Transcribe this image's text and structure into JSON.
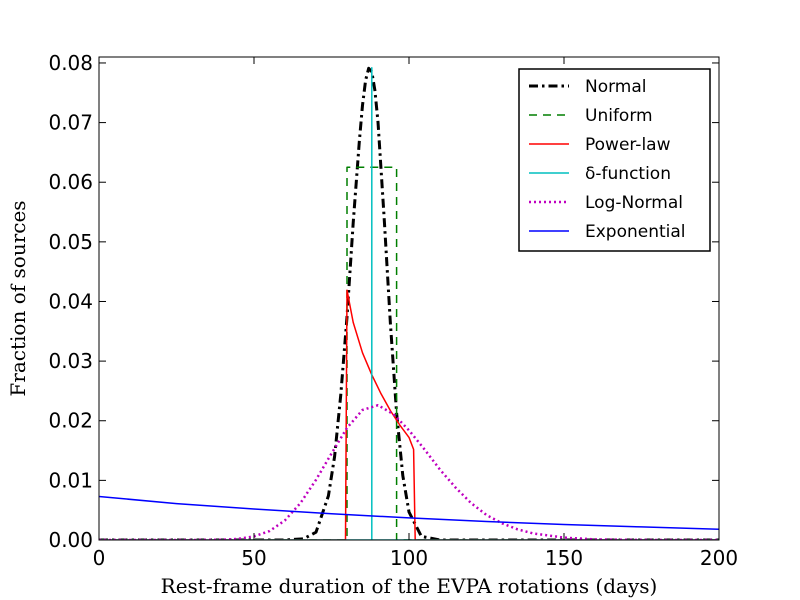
{
  "chart_data": {
    "type": "line",
    "title": "",
    "xlabel": "Rest-frame duration of the EVPA rotations (days)",
    "ylabel": "Fraction of sources",
    "xlim": [
      0,
      200
    ],
    "ylim": [
      0,
      0.081
    ],
    "xticks": [
      0,
      50,
      100,
      150,
      200
    ],
    "xtick_labels": [
      "0",
      "50",
      "100",
      "150",
      "200"
    ],
    "yticks": [
      0,
      0.01,
      0.02,
      0.03,
      0.04,
      0.05,
      0.06,
      0.07,
      0.08
    ],
    "ytick_labels": [
      "0.00",
      "0.01",
      "0.02",
      "0.03",
      "0.04",
      "0.05",
      "0.06",
      "0.07",
      "0.08"
    ],
    "legend_position": "top-right",
    "series": [
      {
        "name": "Normal",
        "color": "#000000",
        "style": "dashdot",
        "x": [
          0,
          60,
          66,
          70,
          74,
          76,
          78,
          80,
          82,
          84,
          85,
          86,
          87,
          88,
          89,
          90,
          92,
          94,
          96,
          98,
          100,
          104,
          110,
          200
        ],
        "y": [
          0,
          0,
          0.0002,
          0.0013,
          0.0074,
          0.014,
          0.0244,
          0.0374,
          0.0532,
          0.067,
          0.0729,
          0.0771,
          0.0791,
          0.0785,
          0.0754,
          0.0701,
          0.0539,
          0.0363,
          0.0213,
          0.0108,
          0.0047,
          0.0006,
          0,
          0
        ]
      },
      {
        "name": "Uniform",
        "color": "#007f00",
        "style": "dashed",
        "x": [
          0,
          80,
          80,
          96,
          96,
          200
        ],
        "y": [
          0,
          0,
          0.0625,
          0.0625,
          0,
          0
        ]
      },
      {
        "name": "Power-law",
        "color": "#ff0000",
        "style": "solid",
        "x": [
          0,
          79.5,
          80,
          82,
          85,
          88,
          91,
          94,
          97,
          100,
          101.5,
          102,
          200
        ],
        "y": [
          0,
          0,
          0.0419,
          0.0365,
          0.0314,
          0.0277,
          0.0245,
          0.0217,
          0.0193,
          0.0172,
          0.0152,
          0,
          0
        ]
      },
      {
        "name": "δ-function",
        "color": "#00bfbf",
        "style": "solid",
        "x": [
          0,
          88,
          88,
          88,
          200
        ],
        "y": [
          0,
          0,
          0.0792,
          0,
          0
        ]
      },
      {
        "name": "Log-Normal",
        "color": "#bf00bf",
        "style": "dotted",
        "x": [
          0,
          30,
          40,
          45,
          50,
          55,
          60,
          65,
          70,
          75,
          80,
          85,
          90,
          95,
          100,
          105,
          110,
          115,
          120,
          125,
          130,
          135,
          140,
          150,
          160,
          170,
          180,
          200
        ],
        "y": [
          0,
          0,
          5e-05,
          0.0002,
          0.0006,
          0.0015,
          0.0033,
          0.0062,
          0.0101,
          0.0145,
          0.0188,
          0.0218,
          0.0226,
          0.0211,
          0.0184,
          0.0152,
          0.0118,
          0.0088,
          0.0062,
          0.0042,
          0.0028,
          0.0018,
          0.0011,
          0.0004,
          0.0001,
          3e-05,
          0,
          0
        ]
      },
      {
        "name": "Exponential",
        "color": "#0000ff",
        "style": "solid",
        "x": [
          0,
          25,
          50,
          75,
          100,
          125,
          150,
          175,
          200
        ],
        "y": [
          0.0073,
          0.0061,
          0.0052,
          0.0044,
          0.0037,
          0.0031,
          0.0026,
          0.0022,
          0.0018
        ]
      }
    ]
  }
}
